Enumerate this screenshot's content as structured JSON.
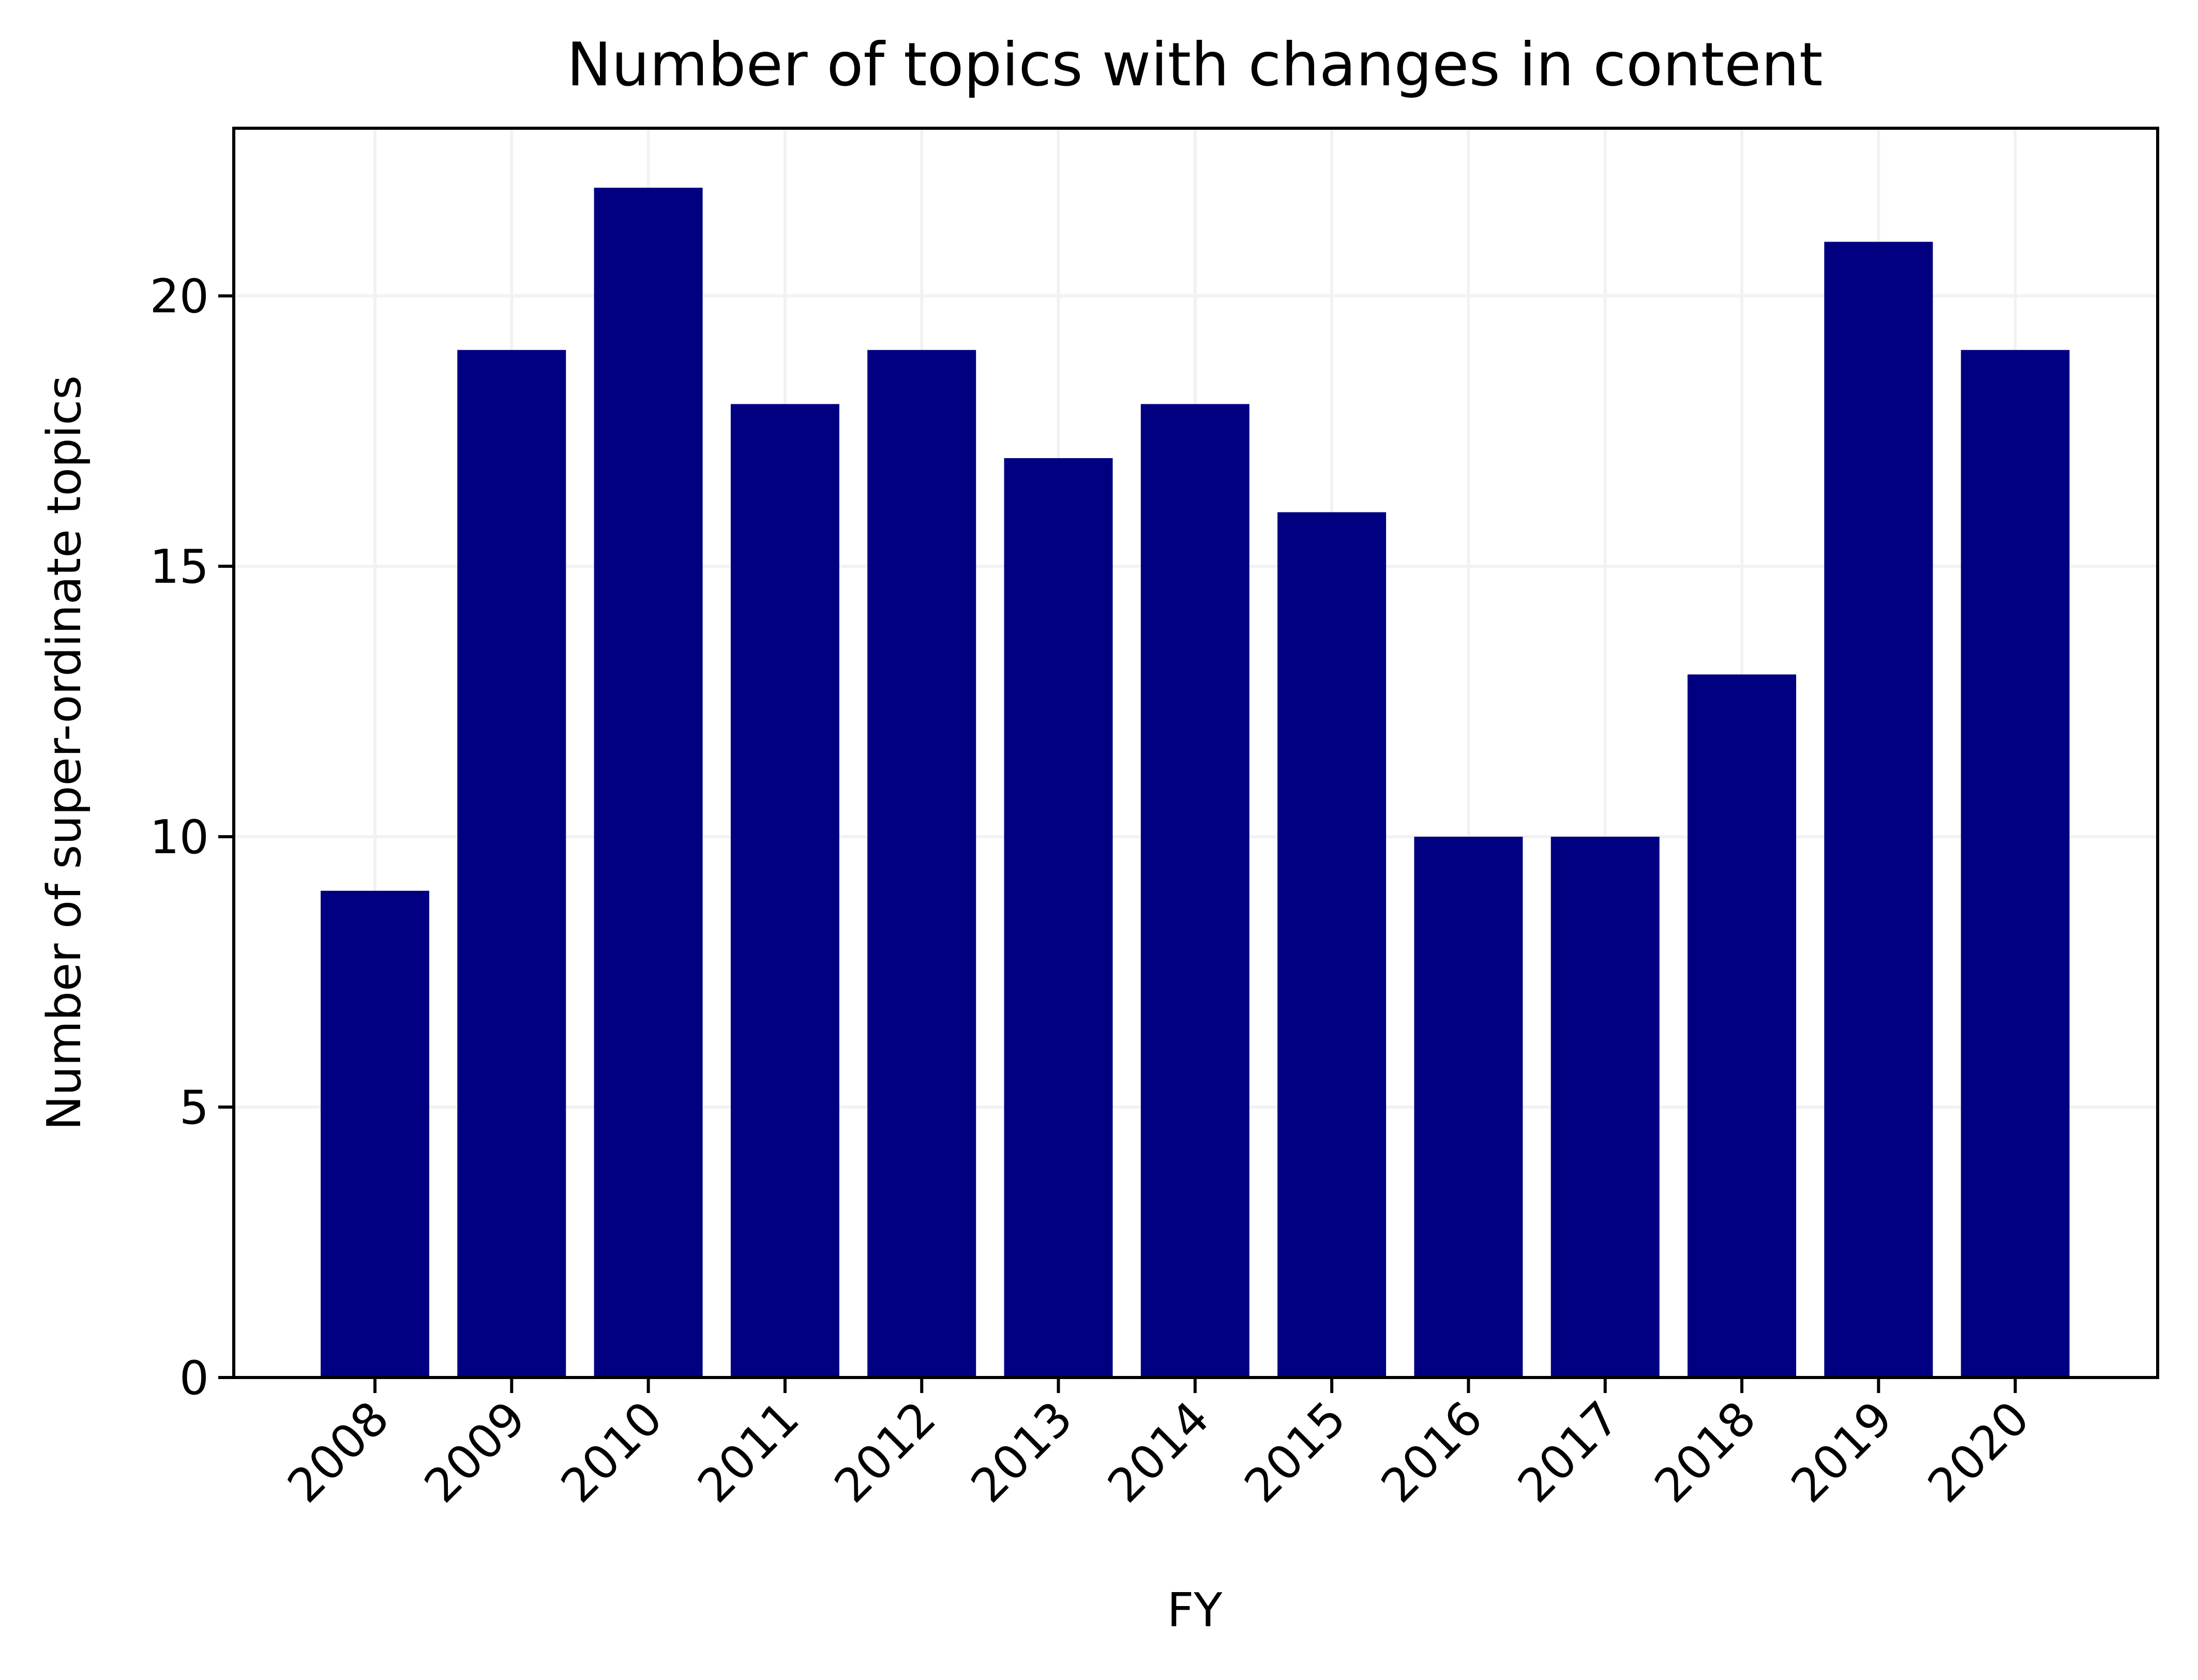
{
  "chart_data": {
    "type": "bar",
    "title": "Number of topics with changes in content",
    "xlabel": "FY",
    "ylabel": "Number of super-ordinate topics",
    "categories": [
      "2008",
      "2009",
      "2010",
      "2011",
      "2012",
      "2013",
      "2014",
      "2015",
      "2016",
      "2017",
      "2018",
      "2019",
      "2020"
    ],
    "values": [
      9,
      19,
      22,
      18,
      19,
      17,
      18,
      16,
      10,
      10,
      13,
      21,
      19
    ],
    "ylim": [
      0,
      23.1
    ],
    "yticks": [
      0,
      5,
      10,
      15,
      20
    ],
    "grid": true,
    "legend": "none",
    "bar_color": "#000080",
    "grid_color": "#f2f2f2"
  }
}
